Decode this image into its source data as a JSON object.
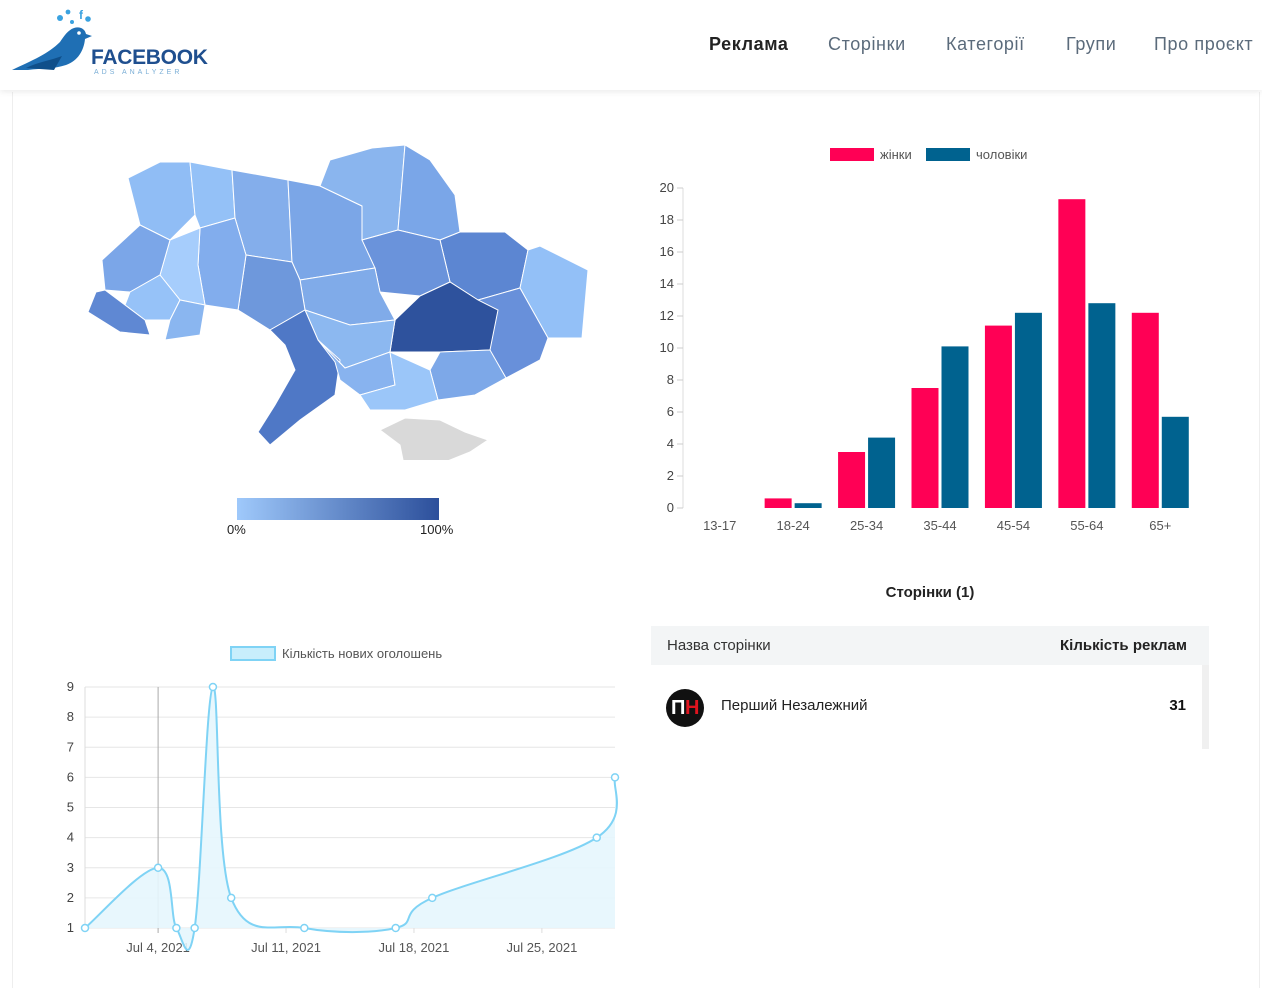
{
  "header": {
    "logo_text": "FACEBOOK",
    "logo_sub": "ADS ANALYZER",
    "nav": [
      {
        "label": "Реклама",
        "active": true
      },
      {
        "label": "Сторінки",
        "active": false
      },
      {
        "label": "Категорії",
        "active": false
      },
      {
        "label": "Групи",
        "active": false
      },
      {
        "label": "Про проєкт",
        "active": false
      }
    ]
  },
  "map": {
    "legend_min": "0%",
    "legend_max": "100%",
    "colors": {
      "low": "#9fc9fb",
      "high": "#2c4f9b",
      "no_data": "#d9d9d9"
    }
  },
  "chart_data": [
    {
      "type": "bar",
      "categories": [
        "13-17",
        "18-24",
        "25-34",
        "35-44",
        "45-54",
        "55-64",
        "65+"
      ],
      "series": [
        {
          "name": "жінки",
          "color": "#ff0055",
          "values": [
            0,
            0.6,
            3.5,
            7.5,
            11.4,
            19.3,
            12.2
          ]
        },
        {
          "name": "чоловіки",
          "color": "#00628f",
          "values": [
            0,
            0.3,
            4.4,
            10.1,
            12.2,
            12.8,
            5.7
          ]
        }
      ],
      "ylim": [
        0,
        20
      ],
      "yticks": [
        0,
        2,
        4,
        6,
        8,
        10,
        12,
        14,
        16,
        18,
        20
      ],
      "legend": "top",
      "grid": false
    },
    {
      "type": "line",
      "series": [
        {
          "name": "Кількість нових оголошень",
          "color": "#7fd3f5",
          "x": [
            "2021-06-30",
            "2021-07-04",
            "2021-07-05",
            "2021-07-06",
            "2021-07-07",
            "2021-07-08",
            "2021-07-12",
            "2021-07-17",
            "2021-07-19",
            "2021-07-28",
            "2021-07-29"
          ],
          "values": [
            1,
            3,
            1,
            1,
            9,
            2,
            1,
            1,
            2,
            4,
            6
          ]
        }
      ],
      "xticks": [
        "Jul 4, 2021",
        "Jul 11, 2021",
        "Jul 18, 2021",
        "Jul 25, 2021"
      ],
      "xlim": [
        "2021-06-30",
        "2021-07-29"
      ],
      "ylim": [
        1,
        9
      ],
      "yticks": [
        1,
        2,
        3,
        4,
        5,
        6,
        7,
        8,
        9
      ],
      "legend": "top",
      "grid": true
    }
  ],
  "pages": {
    "title": "Сторінки (1)",
    "col_name": "Назва сторінки",
    "col_count": "Кількість реклам",
    "rows": [
      {
        "avatar_text": "ПН",
        "name": "Перший Незалежний",
        "count": "31"
      }
    ]
  }
}
